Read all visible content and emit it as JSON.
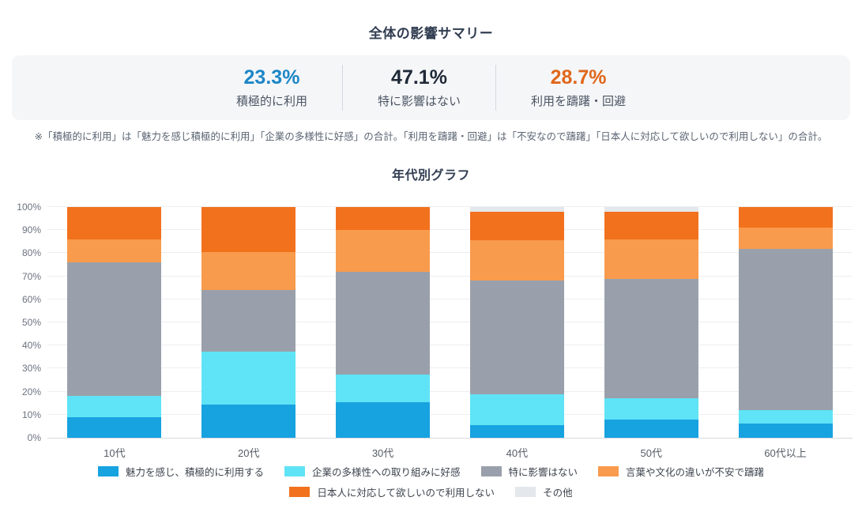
{
  "summary": {
    "title": "全体の影響サマリー",
    "stats": [
      {
        "value": "23.3%",
        "label": "積極的に利用",
        "color": "#1c86c8"
      },
      {
        "value": "47.1%",
        "label": "特に影響はない",
        "color": "#1f2937"
      },
      {
        "value": "28.7%",
        "label": "利用を躊躇・回避",
        "color": "#e0671b"
      }
    ],
    "note": "※「積極的に利用」は「魅力を感じ積極的に利用」「企業の多様性に好感」の合計。「利用を躊躇・回避」は「不安なので躊躇」「日本人に対応して欲しいので利用しない」の合計。"
  },
  "chart": {
    "title": "年代別グラフ"
  },
  "chart_data": {
    "type": "bar",
    "stacked": true,
    "title": "年代別グラフ",
    "xlabel": "",
    "ylabel": "",
    "ylim": [
      0,
      100
    ],
    "grid": true,
    "legend_position": "bottom",
    "yticks": [
      "0%",
      "10%",
      "20%",
      "30%",
      "40%",
      "50%",
      "60%",
      "70%",
      "80%",
      "90%",
      "100%"
    ],
    "categories": [
      "10代",
      "20代",
      "30代",
      "40代",
      "50代",
      "60代以上"
    ],
    "series": [
      {
        "name": "魅力を感じ、積極的に利用する",
        "color": "#17a2e0",
        "values": [
          9,
          14.5,
          15.5,
          5.5,
          8,
          6
        ]
      },
      {
        "name": "企業の多様性への取り組みに好感",
        "color": "#5fe3f6",
        "values": [
          9,
          23,
          12,
          13.5,
          9,
          6
        ]
      },
      {
        "name": "特に影響はない",
        "color": "#9aa0ab",
        "values": [
          58,
          26.5,
          44.5,
          49,
          52,
          70
        ]
      },
      {
        "name": "言葉や文化の違いが不安で躊躇",
        "color": "#f89b4d",
        "values": [
          10,
          16.5,
          18,
          17.5,
          17,
          9
        ]
      },
      {
        "name": "日本人に対応して欲しいので利用しない",
        "color": "#f2711d",
        "values": [
          14,
          19.5,
          10,
          12.5,
          12,
          9
        ]
      },
      {
        "name": "その他",
        "color": "#e4e7eb",
        "values": [
          0,
          0,
          0,
          2,
          2,
          0
        ]
      }
    ],
    "legend_rows": [
      4,
      2
    ]
  }
}
